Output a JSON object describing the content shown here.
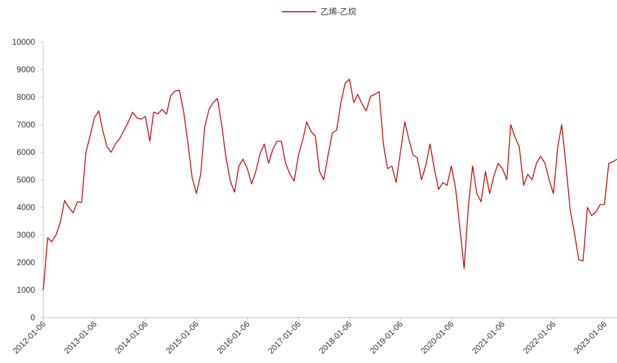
{
  "chart_data": {
    "type": "line",
    "x": [
      "2012-01-06",
      "2012-02-06",
      "2012-03-06",
      "2012-04-06",
      "2012-05-06",
      "2012-06-06",
      "2012-07-06",
      "2012-08-06",
      "2012-09-06",
      "2012-10-06",
      "2012-11-06",
      "2012-12-06",
      "2013-01-06",
      "2013-02-06",
      "2013-03-06",
      "2013-04-06",
      "2013-05-06",
      "2013-06-06",
      "2013-07-06",
      "2013-08-06",
      "2013-09-06",
      "2013-10-06",
      "2013-11-06",
      "2013-12-06",
      "2014-01-06",
      "2014-02-06",
      "2014-03-06",
      "2014-04-06",
      "2014-05-06",
      "2014-06-06",
      "2014-07-06",
      "2014-08-06",
      "2014-09-06",
      "2014-10-06",
      "2014-11-06",
      "2014-12-06",
      "2015-01-06",
      "2015-02-06",
      "2015-03-06",
      "2015-04-06",
      "2015-05-06",
      "2015-06-06",
      "2015-07-06",
      "2015-08-06",
      "2015-09-06",
      "2015-10-06",
      "2015-11-06",
      "2015-12-06",
      "2016-01-06",
      "2016-02-06",
      "2016-03-06",
      "2016-04-06",
      "2016-05-06",
      "2016-06-06",
      "2016-07-06",
      "2016-08-06",
      "2016-09-06",
      "2016-10-06",
      "2016-11-06",
      "2016-12-06",
      "2017-01-06",
      "2017-02-06",
      "2017-03-06",
      "2017-04-06",
      "2017-05-06",
      "2017-06-06",
      "2017-07-06",
      "2017-08-06",
      "2017-09-06",
      "2017-10-06",
      "2017-11-06",
      "2017-12-06",
      "2018-01-06",
      "2018-02-06",
      "2018-03-06",
      "2018-04-06",
      "2018-05-06",
      "2018-06-06",
      "2018-07-06",
      "2018-08-06",
      "2018-09-06",
      "2018-10-06",
      "2018-11-06",
      "2018-12-06",
      "2019-01-06",
      "2019-02-06",
      "2019-03-06",
      "2019-04-06",
      "2019-05-06",
      "2019-06-06",
      "2019-07-06",
      "2019-08-06",
      "2019-09-06",
      "2019-10-06",
      "2019-11-06",
      "2019-12-06",
      "2020-01-06",
      "2020-02-06",
      "2020-03-06",
      "2020-04-06",
      "2020-05-06",
      "2020-06-06",
      "2020-07-06",
      "2020-08-06",
      "2020-09-06",
      "2020-10-06",
      "2020-11-06",
      "2020-12-06",
      "2021-01-06",
      "2021-02-06",
      "2021-03-06",
      "2021-04-06",
      "2021-05-06",
      "2021-06-06",
      "2021-07-06",
      "2021-08-06",
      "2021-09-06",
      "2021-10-06",
      "2021-11-06",
      "2021-12-06",
      "2022-01-06",
      "2022-02-06",
      "2022-03-06",
      "2022-04-06",
      "2022-05-06",
      "2022-06-06",
      "2022-07-06",
      "2022-08-06",
      "2022-09-06",
      "2022-10-06",
      "2022-11-06",
      "2022-12-06",
      "2023-01-06",
      "2023-02-06",
      "2023-03-06",
      "2023-04-06"
    ],
    "series": [
      {
        "name": "乙烯-乙烷",
        "color": "#c00000",
        "values": [
          1000,
          2900,
          2750,
          3000,
          3450,
          4250,
          4000,
          3800,
          4200,
          4180,
          6000,
          6600,
          7250,
          7500,
          6800,
          6200,
          6000,
          6300,
          6500,
          6800,
          7100,
          7450,
          7250,
          7200,
          7300,
          6400,
          7450,
          7400,
          7550,
          7380,
          8050,
          8220,
          8250,
          7500,
          6350,
          5100,
          4500,
          5200,
          6900,
          7550,
          7800,
          7950,
          7000,
          5800,
          4950,
          4550,
          5500,
          5750,
          5400,
          4850,
          5300,
          5950,
          6300,
          5600,
          6100,
          6400,
          6400,
          5600,
          5200,
          4950,
          5900,
          6450,
          7100,
          6750,
          6600,
          5300,
          5000,
          5900,
          6700,
          6800,
          7800,
          8500,
          8650,
          7800,
          8100,
          7750,
          7500,
          8030,
          8100,
          8200,
          6300,
          5400,
          5500,
          4900,
          6000,
          7100,
          6500,
          5900,
          5800,
          5000,
          5500,
          6300,
          5400,
          4650,
          4900,
          4800,
          5500,
          4650,
          3300,
          1780,
          4000,
          5500,
          4500,
          4200,
          5300,
          4500,
          5150,
          5600,
          5400,
          5000,
          7000,
          6550,
          6200,
          4800,
          5200,
          5000,
          5600,
          5850,
          5600,
          5000,
          4500,
          6200,
          7000,
          5500,
          3900,
          3050,
          2100,
          2050,
          4000,
          3700,
          3830,
          4100,
          4100,
          5600,
          5650,
          5750
        ]
      }
    ],
    "xlim": [
      "2012-01-06",
      "2023-04-06"
    ],
    "xticks": [
      "2012-01-06",
      "2013-01-06",
      "2014-01-06",
      "2015-01-06",
      "2016-01-06",
      "2017-01-06",
      "2018-01-06",
      "2019-01-06",
      "2020-01-06",
      "2021-01-06",
      "2022-01-06",
      "2023-01-06"
    ],
    "ylim": [
      0,
      10000
    ],
    "yticks": [
      0,
      1000,
      2000,
      3000,
      4000,
      5000,
      6000,
      7000,
      8000,
      9000,
      10000
    ],
    "legend": "top"
  }
}
